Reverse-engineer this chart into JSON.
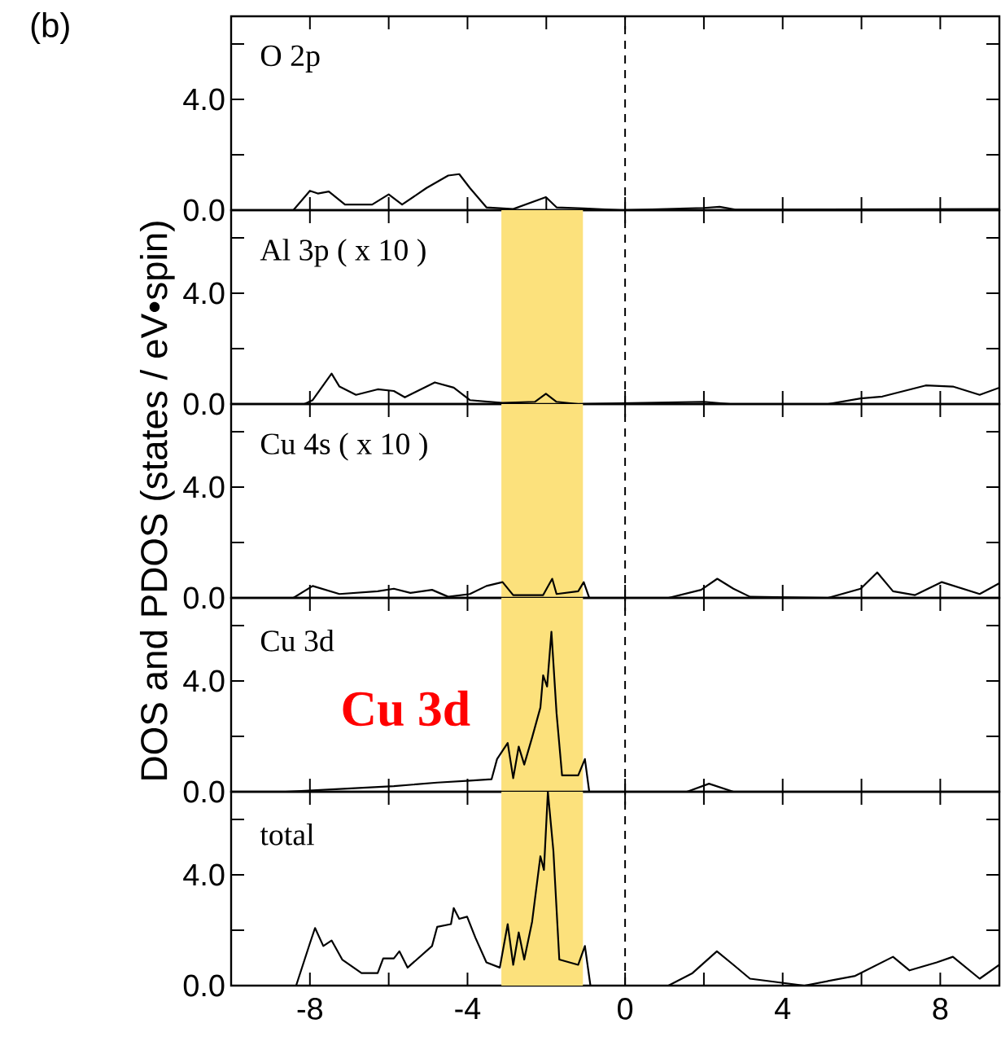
{
  "chart_data": [
    {
      "type": "line",
      "title": "(b)",
      "annotations": [
        "O 2p"
      ],
      "tick_labels": "y",
      "xlim": [
        -10,
        9.5
      ],
      "xticks": [
        -8,
        -6,
        -4,
        -2,
        0,
        2,
        4,
        6,
        8
      ],
      "ylim": [
        0,
        7
      ],
      "yticks": [
        {
          "value": 0,
          "label": "0.0"
        },
        {
          "value": 2,
          "label": null
        },
        {
          "value": 4,
          "label": "4.0"
        },
        {
          "value": 6,
          "label": null
        }
      ],
      "ref_lines": [
        {
          "axis": "x",
          "value": 0,
          "line_style": "dashed",
          "color": "#000000"
        }
      ],
      "series": [
        {
          "color": "#000000",
          "x": [
            -10,
            -8.42,
            -8.0,
            -7.8,
            -7.52,
            -7.11,
            -6.42,
            -6.0,
            -5.66,
            -5.04,
            -4.49,
            -4.21,
            -3.94,
            -3.52,
            -2.84,
            -2.01,
            -1.74,
            -1.05,
            -0.08,
            2.0,
            2.4,
            2.8,
            9.5
          ],
          "values": [
            0,
            0,
            0.7,
            0.6,
            0.67,
            0.2,
            0.2,
            0.57,
            0.2,
            0.8,
            1.25,
            1.3,
            0.8,
            0.1,
            0.04,
            0.47,
            0.1,
            0.06,
            0,
            0.08,
            0.12,
            0.02,
            0.04
          ]
        }
      ]
    },
    {
      "type": "line",
      "annotations": [
        "Al 3p ( x 10 )"
      ],
      "tick_labels": "y",
      "xlim": [
        -10,
        9.5
      ],
      "xticks": [
        -8,
        -6,
        -4,
        -2,
        0,
        2,
        4,
        6,
        8
      ],
      "ylim": [
        0,
        7
      ],
      "yticks": [
        {
          "value": 0,
          "label": "0.0"
        },
        {
          "value": 2,
          "label": null
        },
        {
          "value": 4,
          "label": "4.0"
        },
        {
          "value": 6,
          "label": null
        }
      ],
      "ref_lines": [
        {
          "axis": "x",
          "value": 0,
          "line_style": "dashed",
          "color": "#000000"
        }
      ],
      "bands": [
        {
          "axis": "x",
          "from": -3.14,
          "to": -1.07,
          "color": "#fce17c"
        }
      ],
      "series": [
        {
          "color": "#000000",
          "x": [
            -10,
            -8.14,
            -7.93,
            -7.45,
            -7.25,
            -6.83,
            -6.28,
            -5.87,
            -5.59,
            -4.83,
            -4.35,
            -3.94,
            -3.11,
            -2.29,
            -2.01,
            -1.74,
            -1.19,
            2.0,
            2.67,
            5.15,
            5.98,
            6.53,
            7.63,
            8.32,
            9.0,
            9.5
          ],
          "values": [
            0,
            0,
            0.14,
            1.1,
            0.63,
            0.33,
            0.53,
            0.47,
            0.24,
            0.78,
            0.59,
            0.14,
            0.04,
            0.08,
            0.37,
            0.08,
            0,
            0.08,
            0,
            0,
            0.2,
            0.27,
            0.67,
            0.63,
            0.33,
            0.59
          ]
        }
      ]
    },
    {
      "type": "line",
      "annotations": [
        "Cu 4s ( x 10 )"
      ],
      "tick_labels": "y",
      "ylabel": "DOS and PDOS (states / eV•spin)",
      "xlim": [
        -10,
        9.5
      ],
      "xticks": [
        -8,
        -6,
        -4,
        -2,
        0,
        2,
        4,
        6,
        8
      ],
      "ylim": [
        0,
        7
      ],
      "yticks": [
        {
          "value": 0,
          "label": "0.0"
        },
        {
          "value": 2,
          "label": null
        },
        {
          "value": 4,
          "label": "4.0"
        },
        {
          "value": 6,
          "label": null
        }
      ],
      "ref_lines": [
        {
          "axis": "x",
          "value": 0,
          "line_style": "dashed",
          "color": "#000000"
        }
      ],
      "bands": [
        {
          "axis": "x",
          "from": -3.14,
          "to": -1.07,
          "color": "#fce17c"
        }
      ],
      "series": [
        {
          "color": "#000000",
          "x": [
            -10,
            -8.42,
            -7.93,
            -7.25,
            -6.28,
            -5.87,
            -5.45,
            -4.9,
            -4.49,
            -3.94,
            -3.52,
            -3.11,
            -2.84,
            -2.08,
            -1.85,
            -1.74,
            -1.19,
            -1.05,
            -0.91,
            1.1,
            1.93,
            2.34,
            2.75,
            3.17,
            5.15,
            5.98,
            6.4,
            6.8,
            7.36,
            8.04,
            9.0,
            9.5
          ],
          "values": [
            0,
            0,
            0.43,
            0.14,
            0.24,
            0.33,
            0.18,
            0.29,
            0.04,
            0.14,
            0.43,
            0.57,
            0.1,
            0.1,
            0.69,
            0.14,
            0.24,
            0.57,
            0,
            0,
            0.29,
            0.69,
            0.33,
            0.04,
            0,
            0.33,
            0.92,
            0.24,
            0.1,
            0.57,
            0.14,
            0.53
          ]
        }
      ]
    },
    {
      "type": "line",
      "annotations": [
        "Cu 3d",
        "Cu 3d"
      ],
      "tick_labels": "y",
      "xlim": [
        -10,
        9.5
      ],
      "xticks": [
        -8,
        -6,
        -4,
        -2,
        0,
        2,
        4,
        6,
        8
      ],
      "ylim": [
        0,
        7
      ],
      "yticks": [
        {
          "value": 0,
          "label": "0.0"
        },
        {
          "value": 2,
          "label": null
        },
        {
          "value": 4,
          "label": "4.0"
        },
        {
          "value": 6,
          "label": null
        }
      ],
      "ref_lines": [
        {
          "axis": "x",
          "value": 0,
          "line_style": "dashed",
          "color": "#000000"
        }
      ],
      "bands": [
        {
          "axis": "x",
          "from": -3.14,
          "to": -1.07,
          "color": "#fce17c"
        }
      ],
      "series": [
        {
          "color": "#000000",
          "x": [
            -10,
            -8.62,
            -7.25,
            -5.87,
            -4.77,
            -3.94,
            -3.39,
            -3.25,
            -2.98,
            -2.84,
            -2.7,
            -2.56,
            -2.36,
            -2.15,
            -2.08,
            -1.98,
            -1.87,
            -1.74,
            -1.6,
            -1.19,
            -1.02,
            -0.91,
            1.57,
            2.13,
            2.75,
            9.5
          ],
          "values": [
            0,
            0,
            0.1,
            0.2,
            0.33,
            0.4,
            0.45,
            1.18,
            1.76,
            0.49,
            1.63,
            0.98,
            1.96,
            3.04,
            4.2,
            3.8,
            5.78,
            2.84,
            0.59,
            0.59,
            1.18,
            0,
            0,
            0.29,
            0,
            0
          ]
        }
      ]
    },
    {
      "type": "line",
      "annotations": [
        "total"
      ],
      "xlim": [
        -10,
        9.5
      ],
      "xticks": [
        {
          "value": -8,
          "label": "-8"
        },
        {
          "value": -6,
          "label": null
        },
        {
          "value": -4,
          "label": "-4"
        },
        {
          "value": -2,
          "label": null
        },
        {
          "value": 0,
          "label": "0"
        },
        {
          "value": 2,
          "label": null
        },
        {
          "value": 4,
          "label": "4"
        },
        {
          "value": 6,
          "label": null
        },
        {
          "value": 8,
          "label": "8"
        }
      ],
      "ylim": [
        0,
        7
      ],
      "yticks": [
        {
          "value": 0,
          "label": "0.0"
        },
        {
          "value": 2,
          "label": null
        },
        {
          "value": 4,
          "label": "4.0"
        },
        {
          "value": 6,
          "label": null
        }
      ],
      "ref_lines": [
        {
          "axis": "x",
          "value": 0,
          "line_style": "dashed",
          "color": "#000000"
        }
      ],
      "bands": [
        {
          "axis": "x",
          "from": -3.14,
          "to": -1.07,
          "color": "#fce17c"
        }
      ],
      "series": [
        {
          "color": "#000000",
          "x": [
            -10,
            -8.35,
            -8.0,
            -7.87,
            -7.66,
            -7.45,
            -7.18,
            -6.69,
            -6.28,
            -6.14,
            -5.87,
            -5.73,
            -5.52,
            -4.9,
            -4.77,
            -4.42,
            -4.35,
            -4.21,
            -4.01,
            -3.8,
            -3.52,
            -3.18,
            -2.98,
            -2.84,
            -2.7,
            -2.56,
            -2.36,
            -2.15,
            -2.06,
            -1.96,
            -1.82,
            -1.67,
            -1.19,
            -1.02,
            -0.88,
            1.1,
            1.71,
            2.33,
            2.75,
            3.17,
            4.55,
            5.84,
            6.8,
            7.22,
            7.91,
            8.32,
            9.0,
            9.5
          ],
          "values": [
            0,
            0,
            1.53,
            2.08,
            1.43,
            1.63,
            0.94,
            0.45,
            0.45,
            0.98,
            0.98,
            1.24,
            0.65,
            1.43,
            2.12,
            2.22,
            2.8,
            2.41,
            2.49,
            1.73,
            0.84,
            0.65,
            2.22,
            0.75,
            1.92,
            0.94,
            2.31,
            4.67,
            4.18,
            7.0,
            4.86,
            0.94,
            0.75,
            1.43,
            0,
            0,
            0.45,
            1.24,
            0.75,
            0.25,
            0,
            0.35,
            1.04,
            0.55,
            0.84,
            1.04,
            0.25,
            0.75
          ]
        }
      ]
    }
  ]
}
